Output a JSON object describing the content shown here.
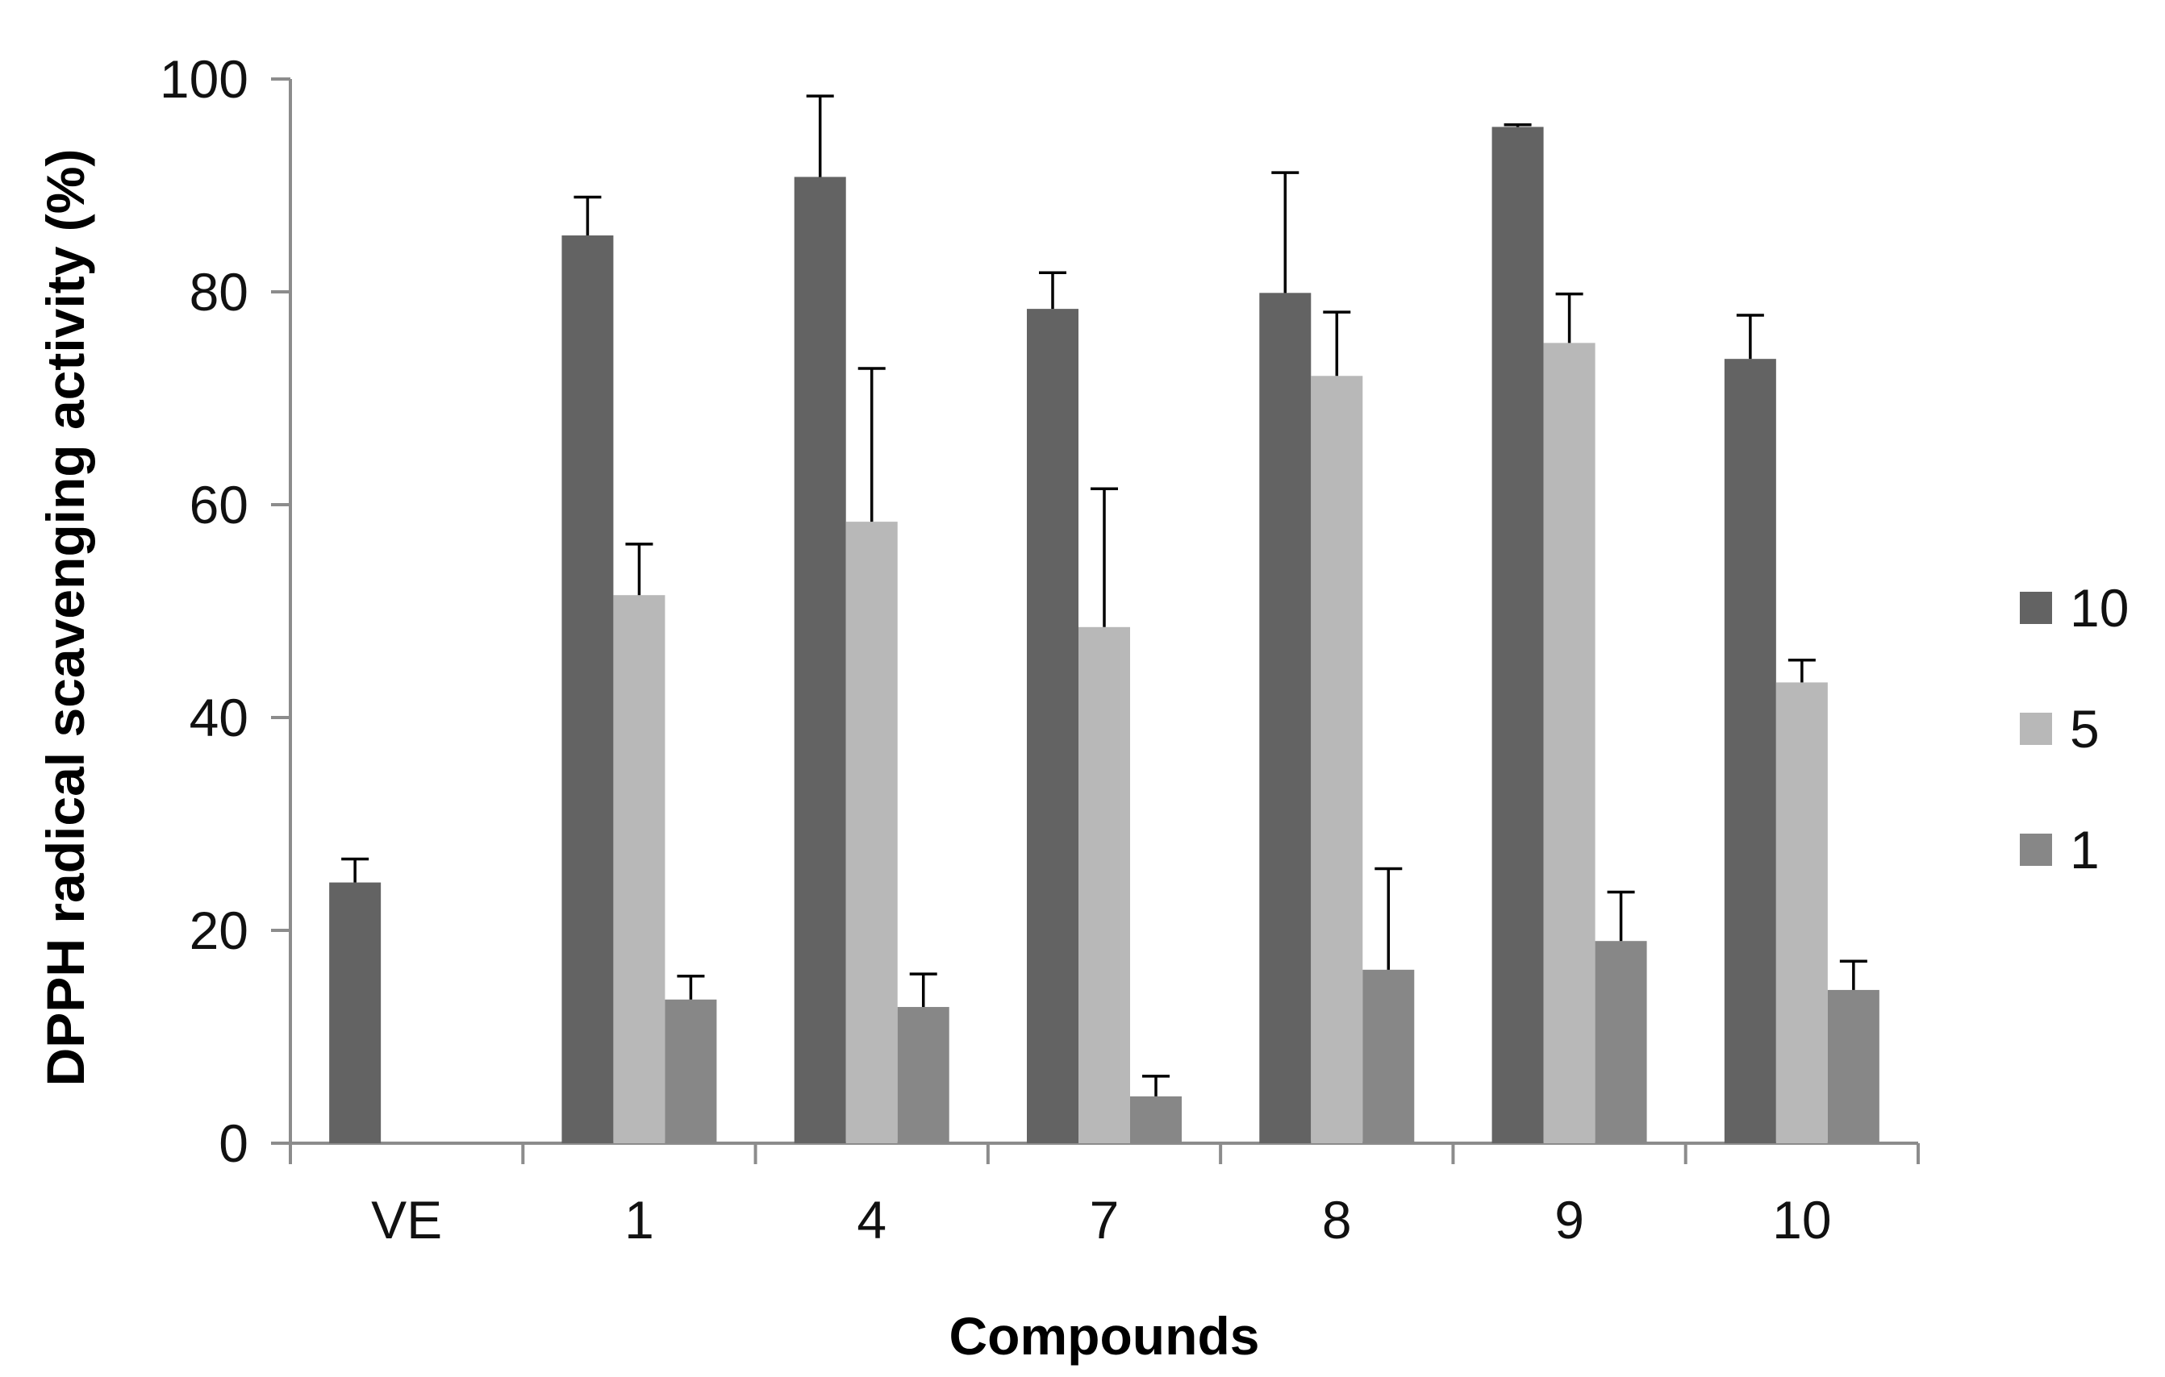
{
  "chart_data": {
    "type": "bar",
    "title": "",
    "xlabel": "Compounds",
    "ylabel": "DPPH radical scavenging activity (%)",
    "ylim": [
      0,
      100
    ],
    "yticks": [
      0,
      20,
      40,
      60,
      80,
      100
    ],
    "categories": [
      "VE",
      "1",
      "4",
      "7",
      "8",
      "9",
      "10"
    ],
    "series": [
      {
        "name": "10",
        "color": "#636363",
        "values": [
          24.5,
          85.3,
          90.8,
          78.4,
          79.9,
          95.5,
          73.7
        ],
        "errors": [
          2.2,
          3.6,
          7.6,
          3.4,
          11.3,
          0.2,
          4.1
        ]
      },
      {
        "name": "5",
        "color": "#b8b8b8",
        "values": [
          null,
          51.5,
          58.4,
          48.5,
          72.1,
          75.2,
          43.3
        ],
        "errors": [
          null,
          4.8,
          14.4,
          13.0,
          6.0,
          4.6,
          2.1
        ]
      },
      {
        "name": "1",
        "color": "#878787",
        "values": [
          null,
          13.5,
          12.8,
          4.4,
          16.3,
          19.0,
          14.4
        ],
        "errors": [
          null,
          2.2,
          3.1,
          1.9,
          9.5,
          4.6,
          2.7
        ]
      }
    ],
    "legend_position": "right"
  }
}
